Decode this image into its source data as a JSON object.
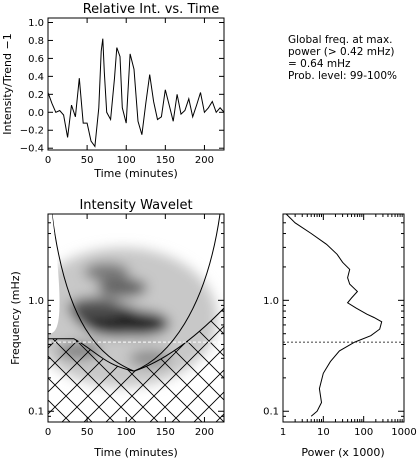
{
  "info": {
    "line1": "Global freq. at max.",
    "line2": "power (> 0.42 mHz)",
    "line3": "= 0.64 mHz",
    "line4": "Prob. level: 99-100%"
  },
  "chart_data": [
    {
      "type": "line",
      "title": "Relative Int. vs. Time",
      "xlabel": "Time (minutes)",
      "ylabel": "Intensity/Trend −1",
      "xlim": [
        0,
        225
      ],
      "ylim": [
        -0.42,
        1.05
      ],
      "x_ticks": [
        0,
        50,
        100,
        150,
        200
      ],
      "x_tick_labels": [
        "0",
        "50",
        "100",
        "150",
        "200"
      ],
      "y_ticks": [
        -0.4,
        -0.2,
        0.0,
        0.2,
        0.4,
        0.6,
        0.8,
        1.0
      ],
      "y_tick_labels": [
        "−0.4",
        "−0.2",
        "0.0",
        "0.2",
        "0.4",
        "0.6",
        "0.8",
        "1.0"
      ],
      "series": [
        {
          "x": [
            0,
            5,
            10,
            15,
            20,
            25,
            30,
            35,
            40,
            45,
            50,
            55,
            60,
            65,
            68,
            70,
            72,
            75,
            80,
            85,
            88,
            92,
            95,
            100,
            105,
            110,
            115,
            120,
            125,
            130,
            135,
            140,
            145,
            150,
            155,
            160,
            165,
            170,
            175,
            180,
            185,
            190,
            195,
            200,
            205,
            210,
            215,
            220,
            225
          ],
          "y": [
            0.22,
            0.1,
            0.0,
            0.02,
            -0.03,
            -0.28,
            0.08,
            -0.05,
            0.38,
            -0.12,
            -0.12,
            -0.32,
            -0.38,
            0.05,
            0.68,
            0.82,
            0.45,
            0.0,
            -0.08,
            0.38,
            0.72,
            0.62,
            0.05,
            -0.12,
            0.65,
            0.48,
            -0.1,
            -0.25,
            0.1,
            0.42,
            0.12,
            -0.08,
            -0.05,
            0.25,
            0.08,
            -0.1,
            0.2,
            -0.02,
            0.02,
            0.15,
            -0.05,
            0.08,
            0.22,
            0.0,
            0.05,
            0.12,
            0.0,
            0.05,
            0.0
          ]
        }
      ]
    },
    {
      "type": "heatmap",
      "title": "Intensity Wavelet",
      "xlabel": "Time (minutes)",
      "ylabel": "Frequency (mHz)",
      "xlim": [
        0,
        225
      ],
      "y_scale": "log",
      "ylim": [
        0.08,
        6.0
      ],
      "x_ticks": [
        0,
        50,
        100,
        150,
        200
      ],
      "x_tick_labels": [
        "0",
        "50",
        "100",
        "150",
        "200"
      ],
      "y_ticks": [
        0.1,
        1.0
      ],
      "y_tick_labels": [
        "0.1",
        "1.0"
      ],
      "max_power_band_mhz": 0.64,
      "dashed_line_mhz": 0.42,
      "power_peaks": [
        {
          "t": 90,
          "f_mhz": 0.64,
          "level": 1.0
        },
        {
          "t": 75,
          "f_mhz": 0.72,
          "level": 0.85
        },
        {
          "t": 115,
          "f_mhz": 0.62,
          "level": 0.8
        },
        {
          "t": 60,
          "f_mhz": 0.85,
          "level": 0.6
        },
        {
          "t": 95,
          "f_mhz": 1.3,
          "level": 0.5
        },
        {
          "t": 75,
          "f_mhz": 1.8,
          "level": 0.4
        },
        {
          "t": 40,
          "f_mhz": 0.35,
          "level": 0.35
        },
        {
          "t": 130,
          "f_mhz": 0.3,
          "level": 0.3
        }
      ],
      "cone_of_influence": "hatched"
    },
    {
      "type": "line",
      "title": "",
      "xlabel": "Power (x 1000)",
      "ylabel": "",
      "x_scale": "log",
      "xlim": [
        1,
        1000
      ],
      "y_scale": "log",
      "ylim": [
        0.08,
        6.0
      ],
      "x_ticks": [
        1,
        10,
        100,
        1000
      ],
      "x_tick_labels": [
        "1",
        "10",
        "100",
        "1000"
      ],
      "y_ticks": [
        0.1,
        1.0
      ],
      "y_tick_labels": [
        "0.1",
        "1.0"
      ],
      "dashed_line_mhz": 0.42,
      "series": [
        {
          "power": [
            1.2,
            2,
            5,
            12,
            22,
            30,
            45,
            40,
            45,
            70,
            50,
            40,
            65,
            120,
            180,
            280,
            250,
            150,
            60,
            25,
            15,
            10,
            8,
            9,
            7,
            5
          ],
          "f_mhz": [
            6.0,
            5.0,
            4.0,
            3.2,
            2.6,
            2.2,
            1.9,
            1.6,
            1.4,
            1.2,
            1.05,
            0.95,
            0.85,
            0.75,
            0.7,
            0.64,
            0.55,
            0.48,
            0.42,
            0.35,
            0.28,
            0.22,
            0.16,
            0.12,
            0.1,
            0.09
          ]
        }
      ]
    }
  ]
}
